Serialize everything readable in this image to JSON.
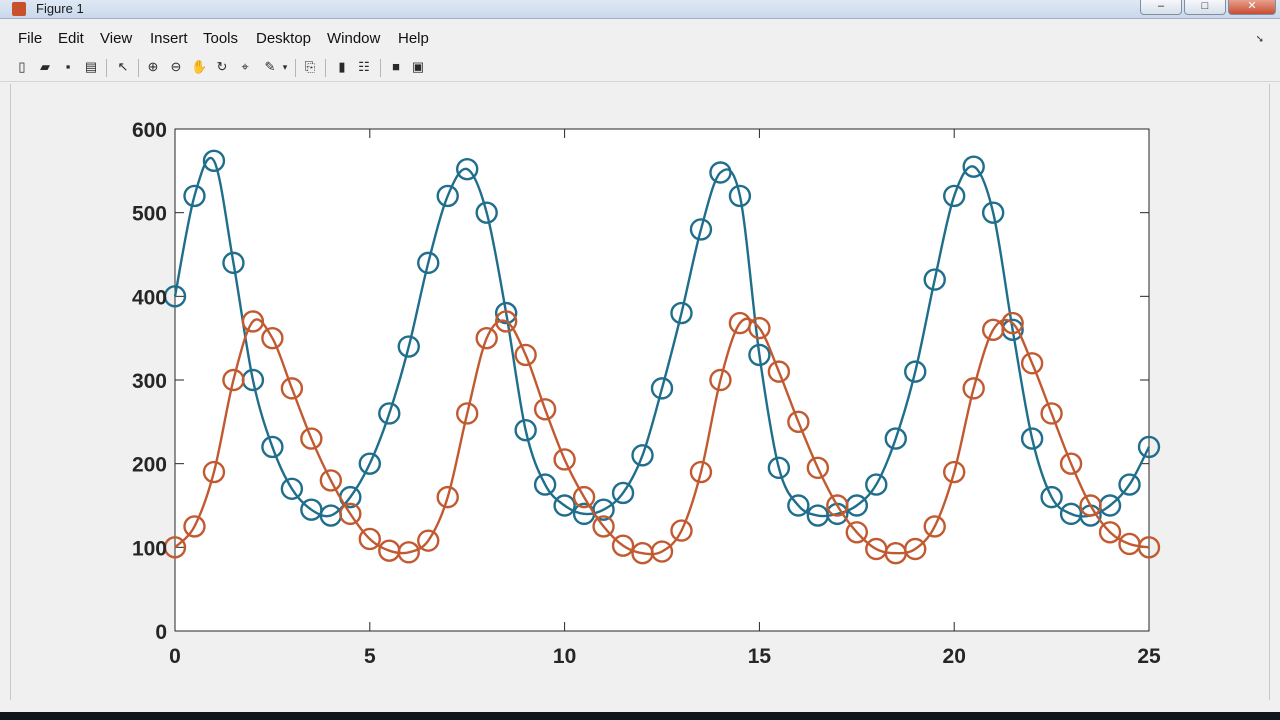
{
  "window": {
    "title": "Figure 1",
    "controls": {
      "minimize": "–",
      "maximize": "□",
      "close": "✕"
    }
  },
  "menu": [
    {
      "label": "File"
    },
    {
      "label": "Edit"
    },
    {
      "label": "View"
    },
    {
      "label": "Insert"
    },
    {
      "label": "Tools"
    },
    {
      "label": "Desktop"
    },
    {
      "label": "Window"
    },
    {
      "label": "Help"
    }
  ],
  "toolbar": [
    {
      "name": "new-figure",
      "icon": "new-file-icon",
      "glyph": "▯"
    },
    {
      "name": "open-file",
      "icon": "folder-open-icon",
      "glyph": "▰"
    },
    {
      "name": "save-figure",
      "icon": "save-icon",
      "glyph": "▪"
    },
    {
      "name": "print-figure",
      "icon": "printer-icon",
      "glyph": "▤"
    },
    {
      "name": "edit-plot",
      "icon": "pointer-arrow-icon",
      "glyph": "↖"
    },
    {
      "name": "zoom-in",
      "icon": "zoom-in-icon",
      "glyph": "⊕"
    },
    {
      "name": "zoom-out",
      "icon": "zoom-out-icon",
      "glyph": "⊖"
    },
    {
      "name": "pan",
      "icon": "hand-pan-icon",
      "glyph": "✋"
    },
    {
      "name": "rotate-3d",
      "icon": "rotate-icon",
      "glyph": "↻"
    },
    {
      "name": "data-cursor",
      "icon": "data-cursor-icon",
      "glyph": "⌖"
    },
    {
      "name": "brush",
      "icon": "brush-icon",
      "glyph": "✎"
    },
    {
      "name": "link-plot",
      "icon": "link-plot-icon",
      "glyph": "⎘"
    },
    {
      "name": "insert-colorbar",
      "icon": "colorbar-icon",
      "glyph": "▮"
    },
    {
      "name": "insert-legend",
      "icon": "legend-icon",
      "glyph": "☷"
    },
    {
      "name": "hide-plot-tools",
      "icon": "hide-tools-icon",
      "glyph": "■"
    },
    {
      "name": "show-plot-tools",
      "icon": "show-tools-icon",
      "glyph": "▣"
    }
  ],
  "chart_data": {
    "type": "line",
    "xlim": [
      0,
      25
    ],
    "ylim": [
      0,
      600
    ],
    "x_ticks": [
      "0",
      "5",
      "10",
      "15",
      "20",
      "25"
    ],
    "y_ticks": [
      "0",
      "100",
      "200",
      "300",
      "400",
      "500",
      "600"
    ],
    "grid": false,
    "marker": "circle",
    "series": [
      {
        "color": "#1f6e8c",
        "x": [
          0,
          0.5,
          1,
          1.5,
          2,
          2.5,
          3,
          3.5,
          4,
          4.5,
          5,
          5.5,
          6,
          6.5,
          7,
          7.5,
          8,
          8.5,
          9,
          9.5,
          10,
          10.5,
          11,
          11.5,
          12,
          12.5,
          13,
          13.5,
          14,
          14.5,
          15,
          15.5,
          16,
          16.5,
          17,
          17.5,
          18,
          18.5,
          19,
          19.5,
          20,
          20.5,
          21,
          21.5,
          22,
          22.5,
          23,
          23.5,
          24,
          24.5,
          25
        ],
        "y": [
          400,
          520,
          562,
          440,
          300,
          220,
          170,
          145,
          138,
          160,
          200,
          260,
          340,
          440,
          520,
          552,
          500,
          380,
          240,
          175,
          150,
          140,
          145,
          165,
          210,
          290,
          380,
          480,
          548,
          520,
          330,
          195,
          150,
          138,
          140,
          150,
          175,
          230,
          310,
          420,
          520,
          555,
          500,
          360,
          230,
          160,
          140,
          138,
          150,
          175,
          220
        ]
      },
      {
        "color": "#c25a31",
        "x": [
          0,
          0.5,
          1,
          1.5,
          2,
          2.5,
          3,
          3.5,
          4,
          4.5,
          5,
          5.5,
          6,
          6.5,
          7,
          7.5,
          8,
          8.5,
          9,
          9.5,
          10,
          10.5,
          11,
          11.5,
          12,
          12.5,
          13,
          13.5,
          14,
          14.5,
          15,
          15.5,
          16,
          16.5,
          17,
          17.5,
          18,
          18.5,
          19,
          19.5,
          20,
          20.5,
          21,
          21.5,
          22,
          22.5,
          23,
          23.5,
          24,
          24.5,
          25
        ],
        "y": [
          100,
          125,
          190,
          300,
          370,
          350,
          290,
          230,
          180,
          140,
          110,
          96,
          94,
          108,
          160,
          260,
          350,
          370,
          330,
          265,
          205,
          160,
          125,
          102,
          93,
          95,
          120,
          190,
          300,
          368,
          362,
          310,
          250,
          195,
          150,
          118,
          98,
          93,
          98,
          125,
          190,
          290,
          360,
          368,
          320,
          260,
          200,
          150,
          118,
          104,
          100
        ]
      }
    ]
  }
}
